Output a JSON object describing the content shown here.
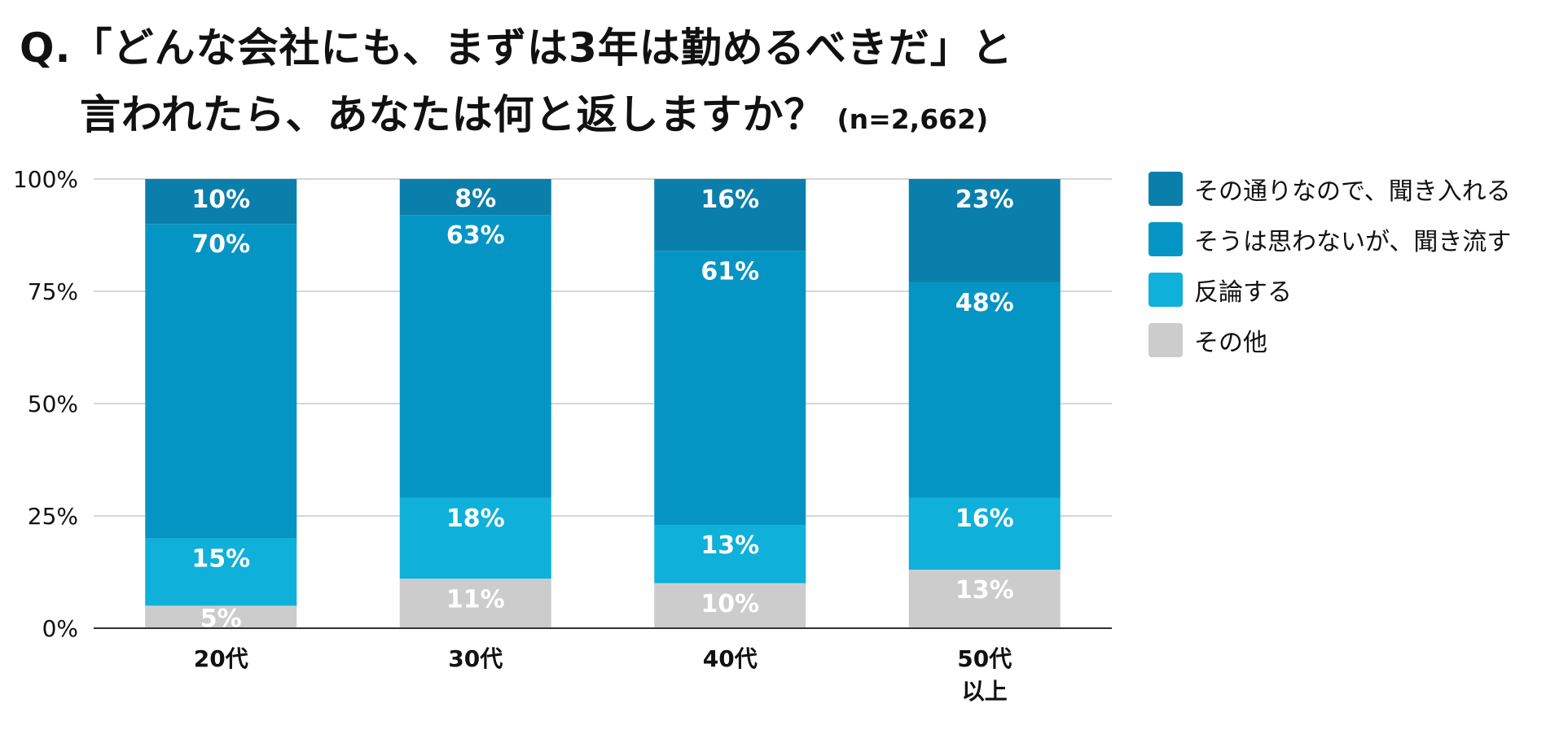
{
  "title": {
    "line1": "Q.「どんな会社にも、まずは3年は勤めるべきだ」と",
    "line2": "言われたら、あなたは何と返しますか？",
    "note": "(n=2,662)"
  },
  "chart_data": {
    "type": "bar",
    "stacked": true,
    "categories": [
      "20代",
      "30代",
      "40代",
      "50代\n以上"
    ],
    "series": [
      {
        "name": "その通りなので、聞き入れる",
        "values": [
          10,
          8,
          16,
          23
        ],
        "labels": [
          "10%",
          "8%",
          "16%",
          "23%"
        ],
        "color": "#0a7fab"
      },
      {
        "name": "そうは思わないが、聞き流す",
        "values": [
          70,
          63,
          61,
          48
        ],
        "labels": [
          "70%",
          "63%",
          "61%",
          "48%"
        ],
        "color": "#0595c4"
      },
      {
        "name": "反論する",
        "values": [
          15,
          18,
          13,
          16
        ],
        "labels": [
          "15%",
          "18%",
          "13%",
          "16%"
        ],
        "color": "#0fb0d9"
      },
      {
        "name": "その他",
        "values": [
          5,
          11,
          10,
          13
        ],
        "labels": [
          "5%",
          "11%",
          "10%",
          "13%"
        ],
        "color": "#cccccc"
      }
    ],
    "ylim": [
      0,
      100
    ],
    "yticks": [
      0,
      25,
      50,
      75,
      100
    ],
    "ytick_labels": [
      "0%",
      "25%",
      "50%",
      "75%",
      "100%"
    ],
    "grid": true,
    "legend_position": "right",
    "xlabel": "",
    "ylabel": ""
  }
}
